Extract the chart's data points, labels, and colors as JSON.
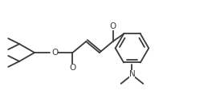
{
  "bg_color": "#ffffff",
  "line_color": "#3a3a3a",
  "line_width": 1.3,
  "font_size": 7.5,
  "fig_width": 2.79,
  "fig_height": 1.38,
  "dpi": 100,
  "xlim": [
    0,
    279
  ],
  "ylim": [
    0,
    138
  ]
}
